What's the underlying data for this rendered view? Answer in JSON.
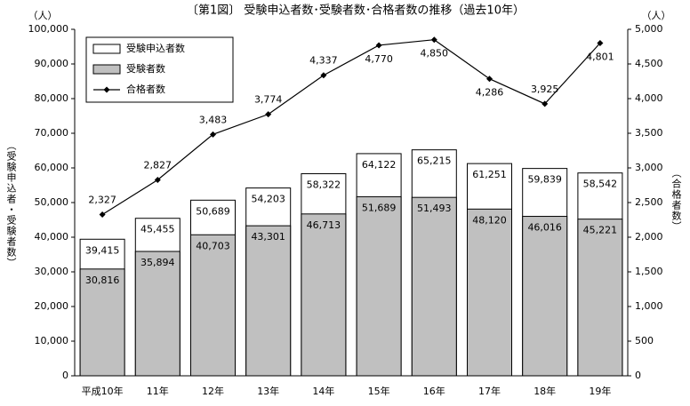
{
  "chart_data": {
    "type": "combo",
    "title": "〔第1図〕 受験申込者数･受験者数･合格者数の推移（過去10年）",
    "y_unit": "（人）",
    "y2_unit": "（人）",
    "y_label": "（受験申込者・受験者数）",
    "y2_label": "（合格者数）",
    "categories": [
      "平成10年",
      "11年",
      "12年",
      "13年",
      "14年",
      "15年",
      "16年",
      "17年",
      "18年",
      "19年"
    ],
    "series": [
      {
        "name": "受験申込者数",
        "type": "bar",
        "color": "#ffffff",
        "values": [
          39415,
          45455,
          50689,
          54203,
          58322,
          64122,
          65215,
          61251,
          59839,
          58542
        ],
        "value_labels": [
          "39,415",
          "45,455",
          "50,689",
          "54,203",
          "58,322",
          "64,122",
          "65,215",
          "61,251",
          "59,839",
          "58,542"
        ]
      },
      {
        "name": "受験者数",
        "type": "bar",
        "color": "#c0c0c0",
        "values": [
          30816,
          35894,
          40703,
          43301,
          46713,
          51689,
          51493,
          48120,
          46016,
          45221
        ],
        "value_labels": [
          "30,816",
          "35,894",
          "40,703",
          "43,301",
          "46,713",
          "51,689",
          "51,493",
          "48,120",
          "46,016",
          "45,221"
        ]
      },
      {
        "name": "合格者数",
        "type": "line",
        "axis": "y2",
        "color": "#000000",
        "values": [
          2327,
          2827,
          3483,
          3774,
          4337,
          4770,
          4850,
          4286,
          3925,
          4801
        ],
        "value_labels": [
          "2,327",
          "2,827",
          "3,483",
          "3,774",
          "4,337",
          "4,770",
          "4,850",
          "4,286",
          "3,925",
          "4,801"
        ]
      }
    ],
    "ylim": [
      0,
      100000
    ],
    "yticks": [
      0,
      {
        "value": 10000,
        "label": "10,000"
      },
      {
        "value": 20000,
        "label": "20,000"
      },
      {
        "value": 30000,
        "label": "30,000"
      },
      {
        "value": 40000,
        "label": "40,000"
      },
      {
        "value": 50000,
        "label": "50,000"
      },
      {
        "value": 60000,
        "label": "60,000"
      },
      {
        "value": 70000,
        "label": "70,000"
      },
      {
        "value": 80000,
        "label": "80,000"
      },
      {
        "value": 90000,
        "label": "90,000"
      },
      {
        "value": 100000,
        "label": "100,000"
      }
    ],
    "y2lim": [
      0,
      5000
    ],
    "y2ticks": [
      0,
      500,
      {
        "value": 1000,
        "label": "1,000"
      },
      {
        "value": 1500,
        "label": "1,500"
      },
      {
        "value": 2000,
        "label": "2,000"
      },
      {
        "value": 2500,
        "label": "2,500"
      },
      {
        "value": 3000,
        "label": "3,000"
      },
      {
        "value": 3500,
        "label": "3,500"
      },
      {
        "value": 4000,
        "label": "4,000"
      },
      {
        "value": 4500,
        "label": "4,500"
      },
      {
        "value": 5000,
        "label": "5,000"
      }
    ],
    "legend": "upper left",
    "grid": false
  }
}
